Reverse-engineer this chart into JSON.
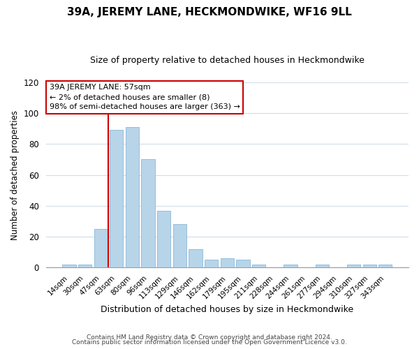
{
  "title": "39A, JEREMY LANE, HECKMONDWIKE, WF16 9LL",
  "subtitle": "Size of property relative to detached houses in Heckmondwike",
  "xlabel": "Distribution of detached houses by size in Heckmondwike",
  "ylabel": "Number of detached properties",
  "bar_labels": [
    "14sqm",
    "30sqm",
    "47sqm",
    "63sqm",
    "80sqm",
    "96sqm",
    "113sqm",
    "129sqm",
    "146sqm",
    "162sqm",
    "179sqm",
    "195sqm",
    "211sqm",
    "228sqm",
    "244sqm",
    "261sqm",
    "277sqm",
    "294sqm",
    "310sqm",
    "327sqm",
    "343sqm"
  ],
  "bar_values": [
    2,
    2,
    25,
    89,
    91,
    70,
    37,
    28,
    12,
    5,
    6,
    5,
    2,
    0,
    2,
    0,
    2,
    0,
    2,
    2,
    2
  ],
  "bar_color": "#b8d4e8",
  "bar_edge_color": "#7aafd4",
  "highlight_index": 3,
  "highlight_color": "#cc0000",
  "ylim": [
    0,
    120
  ],
  "yticks": [
    0,
    20,
    40,
    60,
    80,
    100,
    120
  ],
  "annotation_title": "39A JEREMY LANE: 57sqm",
  "annotation_line1": "← 2% of detached houses are smaller (8)",
  "annotation_line2": "98% of semi-detached houses are larger (363) →",
  "footer_line1": "Contains HM Land Registry data © Crown copyright and database right 2024.",
  "footer_line2": "Contains public sector information licensed under the Open Government Licence v3.0.",
  "background_color": "#ffffff",
  "plot_background": "#ffffff",
  "grid_color": "#d0dce8"
}
